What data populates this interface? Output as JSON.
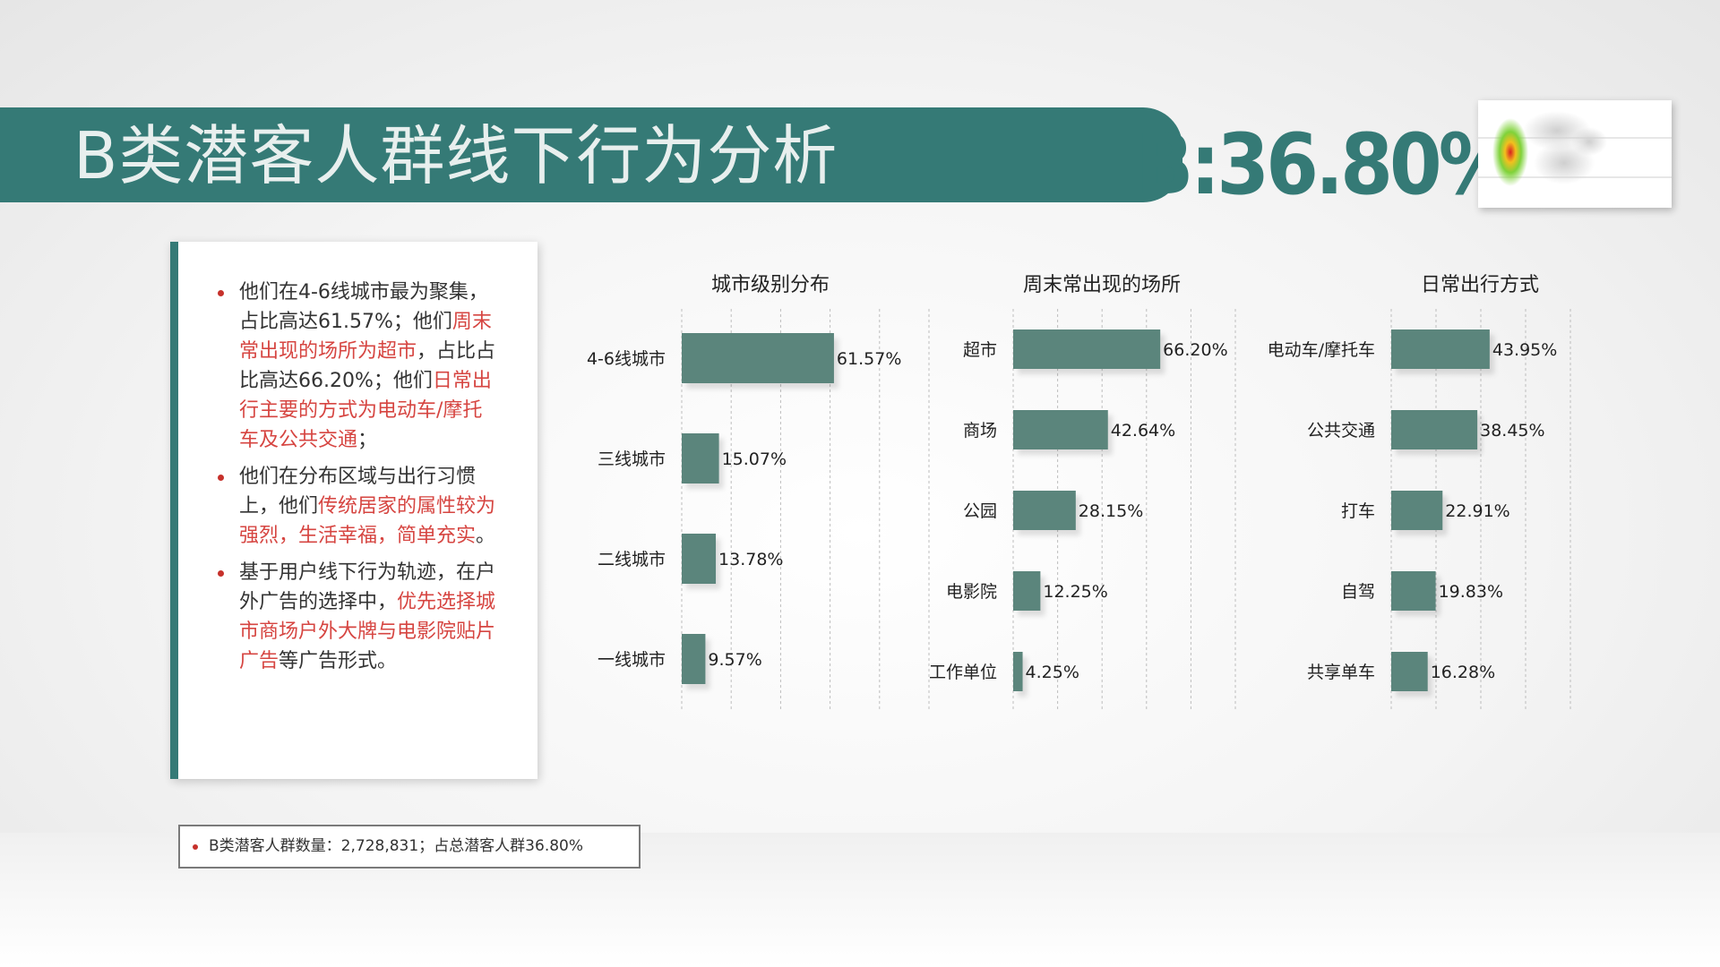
{
  "header": {
    "title": "B类潜客人群线下行为分析",
    "highlight": "B:36.80%"
  },
  "colors": {
    "accent": "#357a76",
    "bar": "#5b857c",
    "highlight_text": "#d64541",
    "bullet": "#c6312b"
  },
  "text_card": {
    "bullets": [
      {
        "segments": [
          {
            "text": "他们在4-6线城市最为聚集，占比高达61.57%；他们",
            "hl": false
          },
          {
            "text": "周末常出现的场所为超市",
            "hl": true
          },
          {
            "text": "，占比占比高达66.20%；他们",
            "hl": false
          },
          {
            "text": "日常出行主要的方式为电动车/摩托车及公共交通",
            "hl": true
          },
          {
            "text": "；",
            "hl": false
          }
        ]
      },
      {
        "segments": [
          {
            "text": "他们在分布区域与出行习惯上，他们",
            "hl": false
          },
          {
            "text": "传统居家的属性较为强烈，生活幸福，简单充实",
            "hl": true
          },
          {
            "text": "。",
            "hl": false
          }
        ]
      },
      {
        "segments": [
          {
            "text": "基于用户线下行为轨迹，在户外广告的选择中，",
            "hl": false
          },
          {
            "text": "优先选择城市商场户外大牌与电影院贴片广告",
            "hl": true
          },
          {
            "text": "等广告形式。",
            "hl": false
          }
        ]
      }
    ]
  },
  "footer": {
    "text": "B类潜客人群数量：2,728,831；占总潜客人群36.80%"
  },
  "chart_data": [
    {
      "type": "bar",
      "orientation": "horizontal",
      "title": "城市级别分布",
      "categories": [
        "4-6线城市",
        "三线城市",
        "二线城市",
        "一线城市"
      ],
      "values": [
        61.57,
        15.07,
        13.78,
        9.57
      ],
      "value_labels": [
        "61.57%",
        "15.07%",
        "13.78%",
        "9.57%"
      ],
      "xlim": [
        0,
        100
      ],
      "grid": true
    },
    {
      "type": "bar",
      "orientation": "horizontal",
      "title": "周末常出现的场所",
      "categories": [
        "超市",
        "商场",
        "公园",
        "电影院",
        "工作单位"
      ],
      "values": [
        66.2,
        42.64,
        28.15,
        12.25,
        4.25
      ],
      "value_labels": [
        "66.20%",
        "42.64%",
        "28.15%",
        "12.25%",
        "4.25%"
      ],
      "xlim": [
        0,
        100
      ],
      "grid": true
    },
    {
      "type": "bar",
      "orientation": "horizontal",
      "title": "日常出行方式",
      "categories": [
        "电动车/摩托车",
        "公共交通",
        "打车",
        "自驾",
        "共享单车"
      ],
      "values": [
        43.95,
        38.45,
        22.91,
        19.83,
        16.28
      ],
      "value_labels": [
        "43.95%",
        "38.45%",
        "22.91%",
        "19.83%",
        "16.28%"
      ],
      "xlim": [
        0,
        80
      ],
      "grid": true
    }
  ]
}
